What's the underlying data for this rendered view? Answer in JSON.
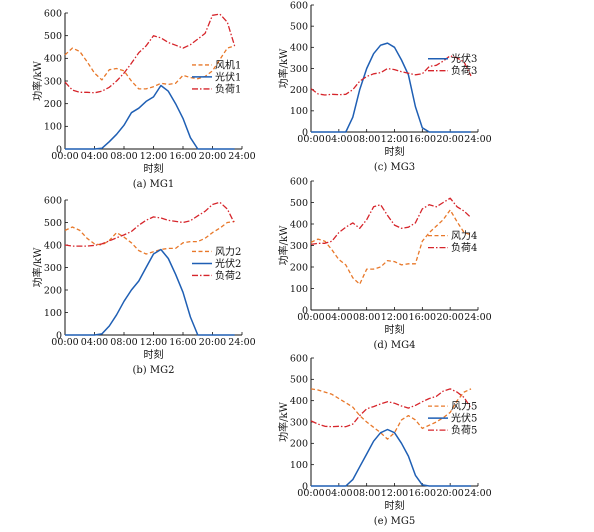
{
  "colors": {
    "wind": "#e8782a",
    "pv": "#1f5fb4",
    "load": "#d6252b",
    "axis": "#111111"
  },
  "chart_data": [
    {
      "id": "mg1",
      "type": "line",
      "caption": "(a) MG1",
      "xlabel": "时刻",
      "ylabel": "功率/kW",
      "ylim": [
        0,
        600
      ],
      "yticks": [
        "0",
        "100",
        "200",
        "300",
        "400",
        "500",
        "600"
      ],
      "xticks": [
        "00:00",
        "04:00",
        "08:00",
        "12:00",
        "16:00",
        "20:00",
        "24:00"
      ],
      "legend_position": "center-right",
      "grid": false,
      "x": [
        0,
        1,
        2,
        3,
        4,
        5,
        6,
        7,
        8,
        9,
        10,
        11,
        12,
        13,
        14,
        15,
        16,
        17,
        18,
        19,
        20,
        21,
        22,
        23
      ],
      "series": [
        {
          "name": "风机1",
          "kind": "wind",
          "values": [
            415,
            445,
            430,
            385,
            335,
            305,
            350,
            355,
            345,
            300,
            265,
            265,
            275,
            290,
            285,
            290,
            325,
            315,
            310,
            320,
            345,
            395,
            445,
            455
          ]
        },
        {
          "name": "光伏1",
          "kind": "pv",
          "values": [
            0,
            0,
            0,
            0,
            0,
            3,
            32,
            65,
            105,
            160,
            180,
            210,
            230,
            280,
            255,
            200,
            135,
            50,
            0,
            0,
            0,
            0,
            0,
            0
          ]
        },
        {
          "name": "负荷1",
          "kind": "load",
          "values": [
            295,
            260,
            250,
            250,
            248,
            255,
            272,
            300,
            335,
            378,
            425,
            455,
            500,
            490,
            470,
            458,
            445,
            460,
            485,
            510,
            590,
            595,
            560,
            455
          ]
        }
      ]
    },
    {
      "id": "mg2",
      "type": "line",
      "caption": "(b) MG2",
      "xlabel": "时刻",
      "ylabel": "功率/kW",
      "ylim": [
        0,
        600
      ],
      "yticks": [
        "0",
        "100",
        "200",
        "300",
        "400",
        "500",
        "600"
      ],
      "xticks": [
        "00:00",
        "04:00",
        "08:00",
        "12:00",
        "16:00",
        "20:00",
        "24:00"
      ],
      "legend_position": "center-right",
      "grid": false,
      "x": [
        0,
        1,
        2,
        3,
        4,
        5,
        6,
        7,
        8,
        9,
        10,
        11,
        12,
        13,
        14,
        15,
        16,
        17,
        18,
        19,
        20,
        21,
        22,
        23
      ],
      "series": [
        {
          "name": "风力2",
          "kind": "wind",
          "values": [
            465,
            480,
            465,
            430,
            405,
            400,
            420,
            455,
            435,
            410,
            375,
            360,
            370,
            380,
            385,
            385,
            410,
            415,
            415,
            430,
            455,
            475,
            500,
            505
          ]
        },
        {
          "name": "光伏2",
          "kind": "pv",
          "values": [
            0,
            0,
            0,
            0,
            0,
            5,
            40,
            90,
            150,
            200,
            240,
            300,
            360,
            380,
            340,
            270,
            190,
            80,
            0,
            0,
            0,
            0,
            0,
            0
          ]
        },
        {
          "name": "负荷2",
          "kind": "load",
          "values": [
            400,
            395,
            395,
            395,
            398,
            405,
            418,
            432,
            445,
            460,
            488,
            510,
            525,
            520,
            510,
            505,
            500,
            508,
            530,
            550,
            580,
            590,
            560,
            495
          ]
        }
      ]
    },
    {
      "id": "mg3",
      "type": "line",
      "caption": "(c) MG3",
      "xlabel": "时刻",
      "ylabel": "功率/kW",
      "ylim": [
        0,
        600
      ],
      "yticks": [
        "0",
        "100",
        "200",
        "300",
        "400",
        "500",
        "600"
      ],
      "xticks": [
        "00:00",
        "04:00",
        "08:00",
        "12:00",
        "16:00",
        "20:00",
        "24:00"
      ],
      "legend_position": "center-right",
      "grid": false,
      "x": [
        0,
        1,
        2,
        3,
        4,
        5,
        6,
        7,
        8,
        9,
        10,
        11,
        12,
        13,
        14,
        15,
        16,
        17,
        18,
        19,
        20,
        21,
        22,
        23
      ],
      "series": [
        {
          "name": "光伏3",
          "kind": "pv",
          "values": [
            0,
            0,
            0,
            0,
            0,
            0,
            70,
            200,
            300,
            370,
            410,
            420,
            400,
            340,
            270,
            120,
            20,
            0,
            0,
            0,
            0,
            0,
            0,
            0
          ]
        },
        {
          "name": "负荷3",
          "kind": "load",
          "values": [
            205,
            180,
            175,
            178,
            176,
            178,
            200,
            240,
            262,
            275,
            280,
            300,
            295,
            285,
            278,
            270,
            275,
            310,
            315,
            335,
            360,
            350,
            330,
            265
          ]
        }
      ]
    },
    {
      "id": "mg4",
      "type": "line",
      "caption": "(d) MG4",
      "xlabel": "时刻",
      "ylabel": "功率/kW",
      "ylim": [
        0,
        600
      ],
      "yticks": [
        "0",
        "100",
        "200",
        "300",
        "400",
        "500",
        "600"
      ],
      "xticks": [
        "00:00",
        "04:00",
        "08:00",
        "12:00",
        "16:00",
        "20:00",
        "24:00"
      ],
      "legend_position": "center-right",
      "grid": false,
      "x": [
        0,
        1,
        2,
        3,
        4,
        5,
        6,
        7,
        8,
        9,
        10,
        11,
        12,
        13,
        14,
        15,
        16,
        17,
        18,
        19,
        20,
        21,
        22,
        23
      ],
      "series": [
        {
          "name": "风力4",
          "kind": "wind",
          "values": [
            315,
            330,
            320,
            280,
            235,
            210,
            150,
            120,
            190,
            190,
            200,
            230,
            225,
            210,
            215,
            215,
            320,
            360,
            390,
            420,
            465,
            410,
            360,
            350
          ]
        },
        {
          "name": "负荷4",
          "kind": "load",
          "values": [
            305,
            310,
            310,
            320,
            360,
            385,
            405,
            380,
            420,
            480,
            490,
            440,
            395,
            380,
            385,
            405,
            470,
            490,
            480,
            500,
            520,
            480,
            460,
            430
          ]
        }
      ]
    },
    {
      "id": "mg5",
      "type": "line",
      "caption": "(e) MG5",
      "xlabel": "时刻",
      "ylabel": "功率/kW",
      "ylim": [
        0,
        600
      ],
      "yticks": [
        "0",
        "100",
        "200",
        "300",
        "400",
        "500",
        "600"
      ],
      "xticks": [
        "00:00",
        "04:00",
        "08:00",
        "12:00",
        "16:00",
        "20:00",
        "24:00"
      ],
      "legend_position": "center-right",
      "grid": false,
      "x": [
        0,
        1,
        2,
        3,
        4,
        5,
        6,
        7,
        8,
        9,
        10,
        11,
        12,
        13,
        14,
        15,
        16,
        17,
        18,
        19,
        20,
        21,
        22,
        23
      ],
      "series": [
        {
          "name": "风力5",
          "kind": "wind",
          "values": [
            455,
            450,
            440,
            430,
            410,
            390,
            370,
            330,
            300,
            275,
            250,
            220,
            250,
            310,
            330,
            310,
            270,
            285,
            300,
            320,
            345,
            400,
            440,
            455
          ]
        },
        {
          "name": "光伏5",
          "kind": "pv",
          "values": [
            0,
            0,
            0,
            0,
            0,
            0,
            30,
            90,
            150,
            210,
            250,
            265,
            250,
            200,
            140,
            50,
            5,
            0,
            0,
            0,
            0,
            0,
            0,
            0
          ]
        },
        {
          "name": "负荷5",
          "kind": "load",
          "values": [
            305,
            290,
            280,
            278,
            280,
            278,
            290,
            330,
            362,
            372,
            385,
            395,
            388,
            375,
            365,
            378,
            395,
            410,
            420,
            445,
            455,
            440,
            415,
            365
          ]
        }
      ]
    }
  ]
}
